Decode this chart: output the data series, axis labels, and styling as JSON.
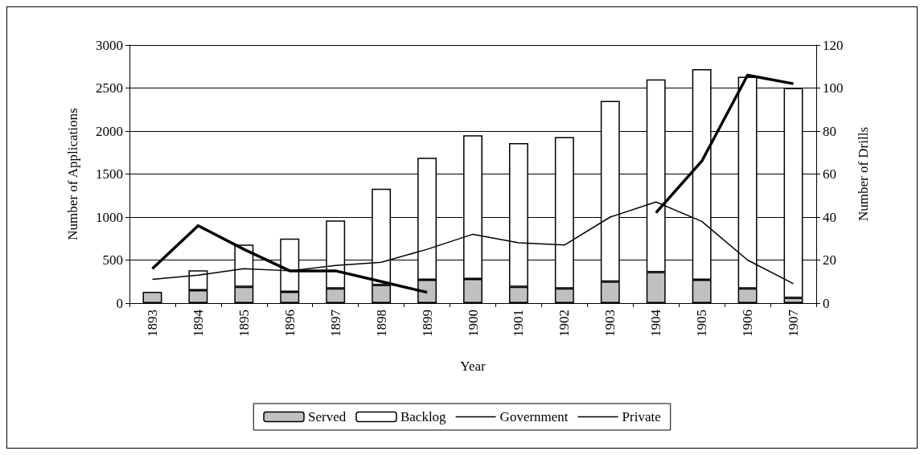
{
  "chart_data": {
    "type": "bar",
    "xlabel": "Year",
    "ylabel": "Number of Applications",
    "y2label": "Number of Drills",
    "categories": [
      "1893",
      "1894",
      "1895",
      "1896",
      "1897",
      "1898",
      "1899",
      "1900",
      "1901",
      "1902",
      "1903",
      "1904",
      "1905",
      "1906",
      "1907"
    ],
    "stacked": true,
    "series": [
      {
        "name": "Served",
        "color": "#c0c0c0",
        "values": [
          130,
          150,
          190,
          130,
          170,
          210,
          270,
          280,
          190,
          170,
          250,
          360,
          270,
          170,
          60
        ]
      },
      {
        "name": "Backlog",
        "color": "#ffffff",
        "values": [
          null,
          230,
          490,
          620,
          790,
          1120,
          1420,
          1670,
          1670,
          1760,
          2100,
          2240,
          2450,
          2460,
          2440
        ]
      },
      {
        "name": "Government",
        "type": "line",
        "axis": "y2",
        "color": "#000000",
        "values": [
          11,
          13,
          16,
          15,
          17.5,
          19,
          25,
          32,
          28,
          27,
          40,
          47,
          38,
          20,
          9
        ]
      },
      {
        "name": "Private",
        "type": "line",
        "axis": "y2",
        "color": "#000000",
        "values": [
          16,
          36,
          25,
          15,
          15,
          10,
          5,
          null,
          null,
          null,
          null,
          42,
          66,
          106,
          102
        ]
      }
    ],
    "ylim": [
      0,
      3000
    ],
    "yticks": [
      0,
      500,
      {
        "value": 1000,
        "label": "1000"
      },
      {
        "value": 1500,
        "label": "1500"
      },
      {
        "value": 2000,
        "label": "2000"
      },
      {
        "value": 2500,
        "label": "2500"
      },
      {
        "value": 3000,
        "label": "3000"
      }
    ],
    "y2lim": [
      0,
      120
    ],
    "y2ticks": [
      0,
      20,
      40,
      60,
      80,
      100,
      120
    ],
    "grid": "y",
    "legend": "bottom",
    "marker": "none"
  }
}
